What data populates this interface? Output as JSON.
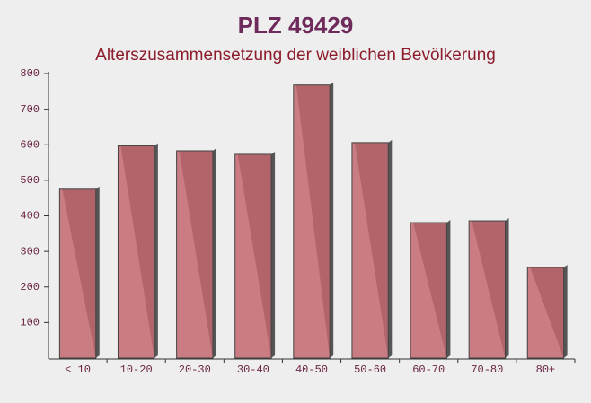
{
  "chart_data": {
    "type": "bar",
    "title": "PLZ 49429",
    "subtitle": "Alterszusammensetzung der weiblichen Bevölkerung",
    "categories": [
      "< 10",
      "10-20",
      "20-30",
      "30-40",
      "40-50",
      "50-60",
      "60-70",
      "70-80",
      "80+"
    ],
    "values": [
      475,
      597,
      583,
      573,
      768,
      606,
      381,
      386,
      255
    ],
    "color": "#c2676f",
    "ylim": [
      0,
      800
    ],
    "yticks": [
      100,
      200,
      300,
      400,
      500,
      600,
      700,
      800
    ],
    "grid": false
  }
}
